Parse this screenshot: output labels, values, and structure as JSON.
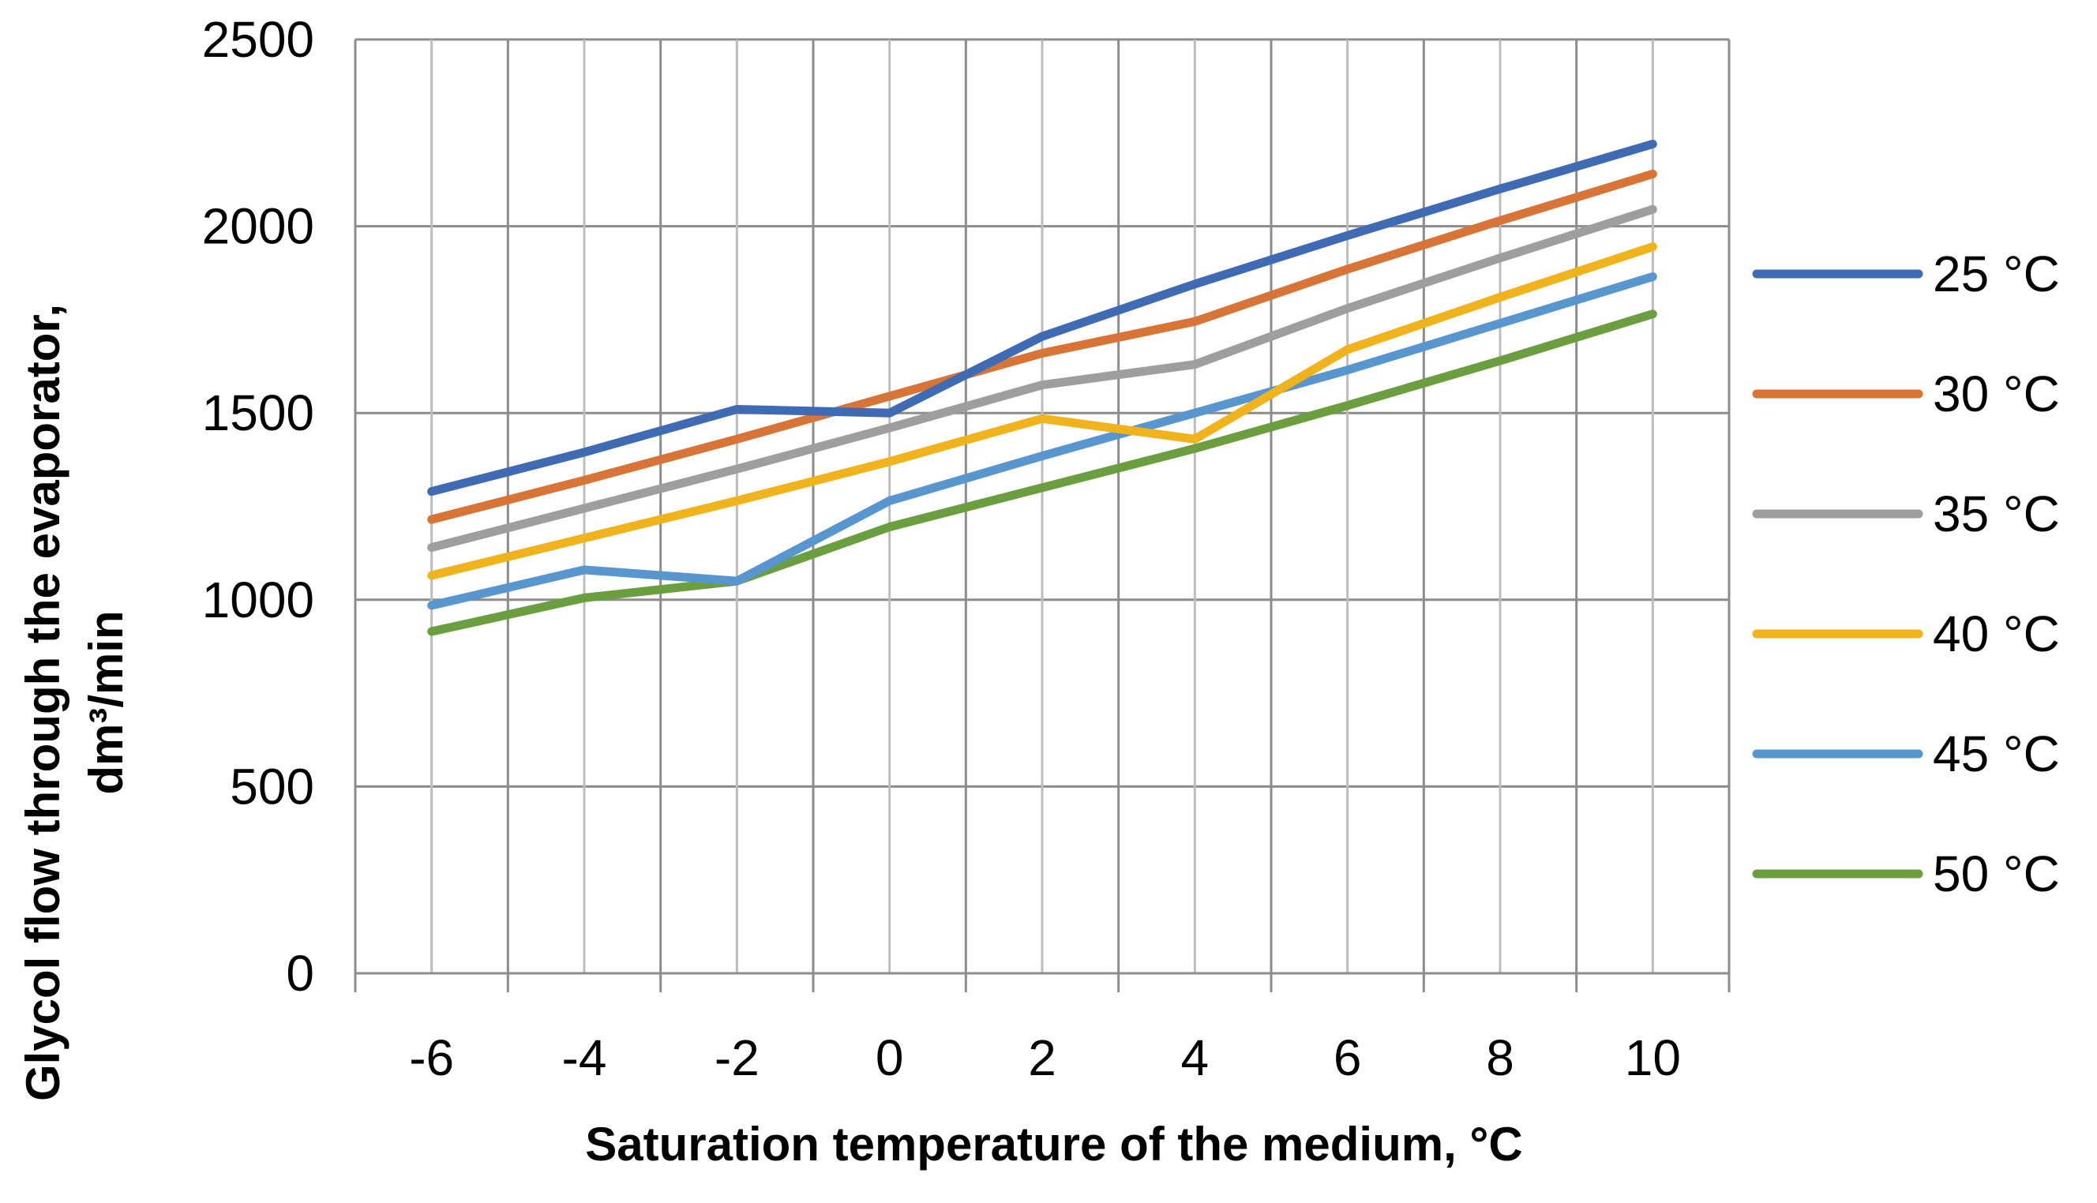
{
  "chart_data": {
    "type": "line",
    "title": "",
    "xlabel": "Saturation temperature of the medium, °C",
    "ylabel_line1": "Glycol flow through the evaporator,",
    "ylabel_line2": "dm³/min",
    "x": [
      -6,
      -4,
      -2,
      0,
      2,
      4,
      6,
      8,
      10
    ],
    "x_tick_labels": [
      "-6",
      "-4",
      "-2",
      "0",
      "2",
      "4",
      "6",
      "8",
      "10"
    ],
    "y_tick_labels": [
      "0",
      "500",
      "1000",
      "1500",
      "2000",
      "2500"
    ],
    "y_ticks": [
      0,
      500,
      1000,
      1500,
      2000,
      2500
    ],
    "ylim": [
      0,
      2500
    ],
    "grid": true,
    "legend_position": "right",
    "series": [
      {
        "name": "25 °C",
        "color": "#3F6BB5",
        "values": [
          1290,
          1395,
          1510,
          1500,
          1705,
          1845,
          1975,
          2100,
          2220
        ]
      },
      {
        "name": "30 °C",
        "color": "#D87436",
        "values": [
          1215,
          1320,
          1430,
          1545,
          1660,
          1745,
          1885,
          2015,
          2140
        ]
      },
      {
        "name": "35 °C",
        "color": "#9E9E9E",
        "values": [
          1140,
          1245,
          1350,
          1460,
          1575,
          1630,
          1780,
          1915,
          2045
        ]
      },
      {
        "name": "40 °C",
        "color": "#F0B31C",
        "values": [
          1065,
          1165,
          1265,
          1370,
          1485,
          1430,
          1670,
          1810,
          1945
        ]
      },
      {
        "name": "45 °C",
        "color": "#5796CE",
        "values": [
          985,
          1080,
          1050,
          1265,
          1385,
          1500,
          1615,
          1740,
          1865
        ]
      },
      {
        "name": "50 °C",
        "color": "#6A9E3E",
        "values": [
          915,
          1005,
          1050,
          1195,
          1300,
          1405,
          1520,
          1640,
          1765
        ]
      }
    ]
  }
}
